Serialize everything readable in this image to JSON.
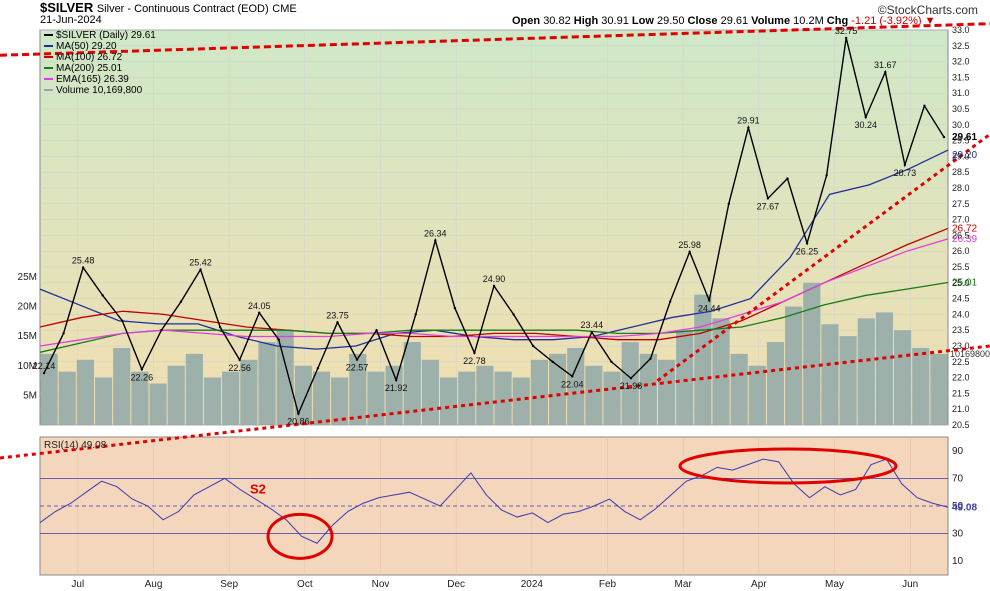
{
  "header": {
    "symbol": "$SILVER",
    "name": "Silver - Continuous Contract (EOD)",
    "exchange": "CME",
    "date": "21-Jun-2024",
    "open_label": "Open",
    "open": "30.82",
    "high_label": "High",
    "high": "30.91",
    "low_label": "Low",
    "low": "29.50",
    "close_label": "Close",
    "close": "29.61",
    "volume_label": "Volume",
    "volume": "10.2M",
    "chg_label": "Chg",
    "chg": "-1.21 (-3.92%)",
    "brand": "©StockCharts.com"
  },
  "legend": [
    {
      "text": "$SILVER (Daily) 29.61",
      "color": "#000000",
      "icon": "candle-icon"
    },
    {
      "text": "MA(50) 29.20",
      "color": "#1f2f9a"
    },
    {
      "text": "MA(100) 26.72",
      "color": "#c00000"
    },
    {
      "text": "MA(200) 25.01",
      "color": "#1a7a1a"
    },
    {
      "text": "EMA(165) 26.39",
      "color": "#e040e0"
    },
    {
      "text": "Volume 10,169,800",
      "color": "#8fa8a8"
    }
  ],
  "colors": {
    "price_bg_top": "#cfe8c8",
    "price_bg_bottom": "#f2deb0",
    "rsi_bg": "#f3d6bc",
    "trend": "#e00000",
    "volume": "#8fa8a8"
  },
  "chart_data": [
    {
      "type": "line",
      "title": "$SILVER (Daily) 29.61",
      "x_labels": [
        "Jul",
        "Aug",
        "Sep",
        "Oct",
        "Nov",
        "Dec",
        "2024",
        "Feb",
        "Mar",
        "Apr",
        "May",
        "Jun"
      ],
      "ylim": [
        20.5,
        33.0
      ],
      "y_ticks": [
        20.5,
        21.0,
        21.5,
        22.0,
        22.5,
        23.0,
        23.5,
        24.0,
        24.5,
        25.0,
        25.5,
        26.0,
        26.5,
        27.0,
        27.5,
        28.0,
        28.5,
        29.0,
        29.5,
        30.0,
        30.5,
        31.0,
        31.5,
        32.0,
        32.5,
        33.0
      ],
      "volume_ticks": [
        "5M",
        "10M",
        "15M",
        "20M",
        "25M"
      ],
      "volume_ticks_values": [
        5,
        10,
        15,
        20,
        25
      ],
      "right_value_labels": [
        "29.61",
        "29.20",
        "26.72",
        "26.39",
        "25.01",
        "10169800"
      ],
      "right_value_numbers": [
        29.61,
        29.2,
        26.72,
        26.39,
        25.01
      ],
      "price_series": [
        [
          "Jul",
          22.14
        ],
        [
          "Jul",
          23.4
        ],
        [
          "Jul",
          25.48
        ],
        [
          "Jul",
          24.6
        ],
        [
          "Aug",
          23.8
        ],
        [
          "Aug",
          22.26
        ],
        [
          "Aug",
          23.5
        ],
        [
          "Aug",
          24.4
        ],
        [
          "Sep",
          25.42
        ],
        [
          "Sep",
          23.6
        ],
        [
          "Sep",
          22.56
        ],
        [
          "Sep",
          24.05
        ],
        [
          "Sep",
          23.2
        ],
        [
          "Oct",
          20.86
        ],
        [
          "Oct",
          22.3
        ],
        [
          "Oct",
          23.75
        ],
        [
          "Oct",
          22.57
        ],
        [
          "Nov",
          23.5
        ],
        [
          "Nov",
          21.92
        ],
        [
          "Nov",
          24.0
        ],
        [
          "Dec",
          26.34
        ],
        [
          "Dec",
          24.2
        ],
        [
          "Dec",
          22.78
        ],
        [
          "Dec",
          24.9
        ],
        [
          "2024",
          24.0
        ],
        [
          "2024",
          23.0
        ],
        [
          "2024",
          22.5
        ],
        [
          "Feb",
          22.04
        ],
        [
          "Feb",
          23.44
        ],
        [
          "Feb",
          22.5
        ],
        [
          "Feb",
          21.98
        ],
        [
          "Mar",
          22.6
        ],
        [
          "Mar",
          24.4
        ],
        [
          "Mar",
          25.98
        ],
        [
          "Mar",
          24.44
        ],
        [
          "Apr",
          27.5
        ],
        [
          "Apr",
          29.91
        ],
        [
          "Apr",
          27.67
        ],
        [
          "Apr",
          28.3
        ],
        [
          "May",
          26.25
        ],
        [
          "May",
          28.4
        ],
        [
          "May",
          32.75
        ],
        [
          "May",
          30.24
        ],
        [
          "Jun",
          31.67
        ],
        [
          "Jun",
          28.73
        ],
        [
          "Jun",
          30.6
        ],
        [
          "Jun",
          29.61
        ]
      ],
      "price_annotations": [
        {
          "label": "22.14",
          "x": "Jul",
          "value": 22.14
        },
        {
          "label": "25.48",
          "x": "Jul",
          "value": 25.48
        },
        {
          "label": "22.26",
          "x": "Aug",
          "value": 22.26
        },
        {
          "label": "25.42",
          "x": "Sep",
          "value": 25.42
        },
        {
          "label": "22.56",
          "x": "Sep",
          "value": 22.56
        },
        {
          "label": "24.05",
          "x": "Sep",
          "value": 24.05
        },
        {
          "label": "20.86",
          "x": "Oct",
          "value": 20.86
        },
        {
          "label": "23.75",
          "x": "Oct",
          "value": 23.75
        },
        {
          "label": "22.57",
          "x": "Oct",
          "value": 22.57
        },
        {
          "label": "21.92",
          "x": "Nov",
          "value": 21.92
        },
        {
          "label": "26.34",
          "x": "Dec",
          "value": 26.34
        },
        {
          "label": "22.78",
          "x": "Dec",
          "value": 22.78
        },
        {
          "label": "24.90",
          "x": "Dec",
          "value": 24.9
        },
        {
          "label": "23.44",
          "x": "Feb",
          "value": 23.44
        },
        {
          "label": "22.04",
          "x": "Feb",
          "value": 22.04
        },
        {
          "label": "21.98",
          "x": "Feb",
          "value": 21.98
        },
        {
          "label": "25.98",
          "x": "Mar",
          "value": 25.98
        },
        {
          "label": "24.44",
          "x": "Mar",
          "value": 24.44
        },
        {
          "label": "29.91",
          "x": "Apr",
          "value": 29.91
        },
        {
          "label": "27.67",
          "x": "Apr",
          "value": 27.67
        },
        {
          "label": "26.25",
          "x": "May",
          "value": 26.25
        },
        {
          "label": "32.75",
          "x": "May",
          "value": 32.75
        },
        {
          "label": "30.24",
          "x": "May",
          "value": 30.24
        },
        {
          "label": "31.67",
          "x": "Jun",
          "value": 31.67
        },
        {
          "label": "28.73",
          "x": "Jun",
          "value": 28.73
        }
      ],
      "moving_averages": [
        {
          "name": "MA(50)",
          "color": "#1f2f9a",
          "values": [
            24.8,
            24.3,
            23.8,
            23.7,
            23.7,
            23.3,
            23.0,
            22.9,
            23.0,
            23.4,
            23.5,
            23.3,
            23.2,
            23.2,
            23.3,
            23.6,
            23.9,
            24.1,
            24.5,
            25.8,
            27.8,
            28.1,
            28.6,
            29.2
          ]
        },
        {
          "name": "MA(100)",
          "color": "#c00000",
          "values": [
            23.6,
            23.9,
            24.1,
            24.0,
            23.8,
            23.6,
            23.5,
            23.4,
            23.4,
            23.3,
            23.3,
            23.4,
            23.4,
            23.3,
            23.2,
            23.2,
            23.4,
            23.8,
            24.4,
            25.0,
            25.6,
            26.2,
            26.72
          ]
        },
        {
          "name": "MA(200)",
          "color": "#1a7a1a",
          "values": [
            22.8,
            23.1,
            23.4,
            23.5,
            23.5,
            23.5,
            23.5,
            23.4,
            23.4,
            23.5,
            23.5,
            23.5,
            23.5,
            23.5,
            23.4,
            23.4,
            23.5,
            23.6,
            23.9,
            24.3,
            24.6,
            24.8,
            25.01
          ]
        },
        {
          "name": "EMA(165)",
          "color": "#e040e0",
          "values": [
            23.0,
            23.2,
            23.4,
            23.5,
            23.4,
            23.3,
            23.3,
            23.3,
            23.4,
            23.4,
            23.3,
            23.3,
            23.3,
            23.3,
            23.3,
            23.4,
            23.6,
            24.0,
            24.4,
            25.0,
            25.5,
            26.0,
            26.39
          ]
        }
      ],
      "volume": [
        12,
        9,
        11,
        8,
        13,
        9,
        7,
        10,
        12,
        8,
        9,
        11,
        14,
        16,
        10,
        9,
        8,
        12,
        9,
        10,
        14,
        11,
        8,
        9,
        10,
        9,
        8,
        11,
        12,
        13,
        10,
        9,
        14,
        12,
        11,
        16,
        22,
        18,
        12,
        10,
        14,
        20,
        24,
        17,
        15,
        18,
        19,
        16,
        13,
        12
      ],
      "volume_last": 10169800
    },
    {
      "type": "line",
      "title": "RSI(14) 49.08",
      "ylim": [
        0,
        100
      ],
      "y_ticks": [
        10,
        30,
        50,
        70,
        90
      ],
      "reference_lines": [
        30,
        50,
        70
      ],
      "value": 49.08,
      "x_labels": [
        "Jul",
        "Aug",
        "Sep",
        "Oct",
        "Nov",
        "Dec",
        "2024",
        "Feb",
        "Mar",
        "Apr",
        "May",
        "Jun"
      ],
      "values": [
        38,
        46,
        52,
        60,
        68,
        64,
        55,
        50,
        40,
        46,
        58,
        64,
        70,
        62,
        55,
        48,
        40,
        28,
        23,
        36,
        46,
        52,
        56,
        58,
        60,
        55,
        50,
        62,
        74,
        58,
        47,
        42,
        45,
        38,
        44,
        46,
        50,
        55,
        46,
        40,
        48,
        58,
        68,
        72,
        78,
        76,
        80,
        84,
        82,
        66,
        56,
        64,
        58,
        62,
        80,
        84,
        66,
        56,
        52,
        49.08
      ],
      "annotation": "S2"
    }
  ]
}
